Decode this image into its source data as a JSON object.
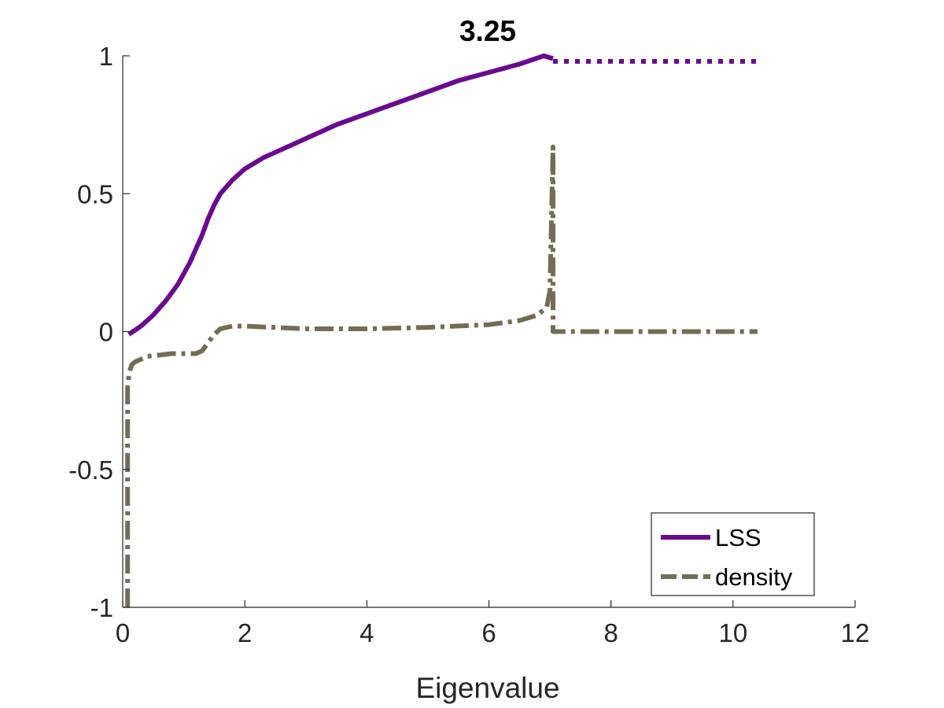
{
  "chart_data": {
    "type": "line",
    "title": "3.25",
    "xlabel": "Eigenvalue",
    "ylabel": "",
    "xlim": [
      0,
      12
    ],
    "ylim": [
      -1,
      1
    ],
    "xticks": [
      0,
      2,
      4,
      6,
      8,
      10,
      12
    ],
    "yticks": [
      -1,
      -0.5,
      0,
      0.5,
      1
    ],
    "xtick_labels": [
      "0",
      "2",
      "4",
      "6",
      "8",
      "10",
      "12"
    ],
    "ytick_labels": [
      "-1",
      "-0.5",
      "0",
      "0.5",
      "1"
    ],
    "grid": false,
    "legend_position": "bottom-right",
    "series": [
      {
        "name": "LSS",
        "color": "#6a0a8f",
        "style": "solid",
        "x": [
          0.1,
          0.3,
          0.5,
          0.7,
          0.9,
          1.1,
          1.3,
          1.4,
          1.5,
          1.6,
          1.8,
          2.0,
          2.3,
          2.6,
          3.0,
          3.5,
          4.0,
          4.5,
          5.0,
          5.5,
          6.0,
          6.5,
          6.9,
          7.05
        ],
        "y": [
          -0.01,
          0.02,
          0.06,
          0.11,
          0.17,
          0.25,
          0.35,
          0.41,
          0.46,
          0.5,
          0.55,
          0.59,
          0.63,
          0.66,
          0.7,
          0.75,
          0.79,
          0.83,
          0.87,
          0.91,
          0.94,
          0.97,
          1.0,
          0.99
        ]
      },
      {
        "name": "",
        "color": "#6a0a8f",
        "style": "dotted",
        "x": [
          7.05,
          10.4
        ],
        "y": [
          0.98,
          0.98
        ]
      },
      {
        "name": "density",
        "color": "#736d55",
        "style": "dashdot",
        "x": [
          0.08,
          0.08,
          0.1,
          0.12,
          0.15,
          0.2,
          0.3,
          0.4,
          0.6,
          0.8,
          1.0,
          1.2,
          1.3,
          1.4,
          1.5,
          1.6,
          1.8,
          2.0,
          3.0,
          4.0,
          5.0,
          6.0,
          6.5,
          6.8,
          6.95,
          7.0,
          7.05,
          7.05,
          7.08,
          10.4
        ],
        "y": [
          -1.0,
          -0.2,
          -0.16,
          -0.14,
          -0.12,
          -0.11,
          -0.1,
          -0.09,
          -0.085,
          -0.08,
          -0.08,
          -0.08,
          -0.07,
          -0.04,
          -0.01,
          0.01,
          0.02,
          0.02,
          0.01,
          0.01,
          0.015,
          0.025,
          0.04,
          0.06,
          0.09,
          0.15,
          0.67,
          0.0,
          0.0,
          0.0
        ]
      }
    ]
  }
}
